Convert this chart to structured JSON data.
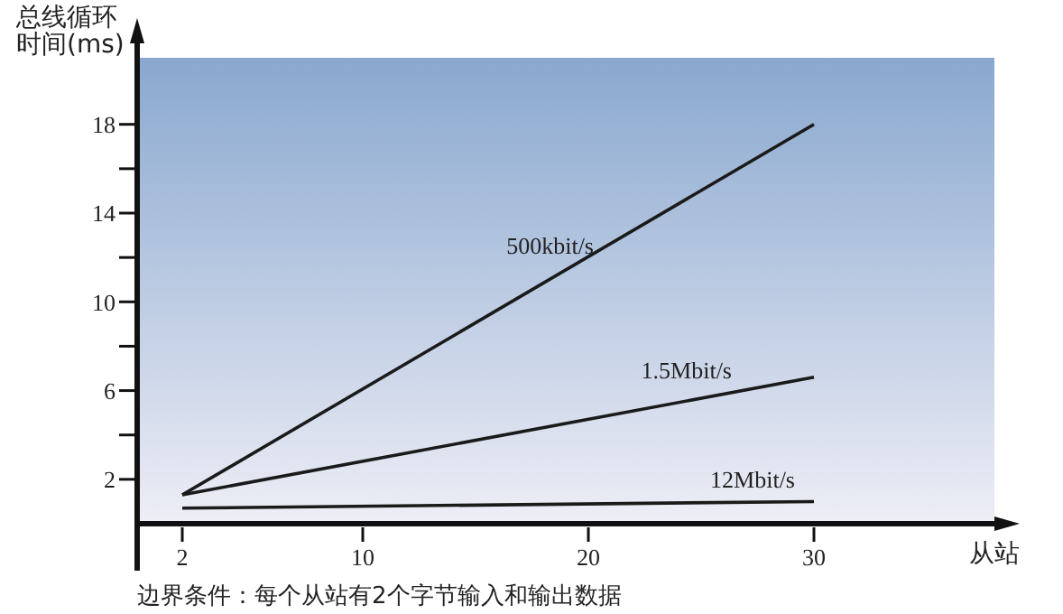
{
  "chart_data": {
    "type": "line",
    "xlabel": "从站",
    "ylabel": "总线循环时间(ms)",
    "x": [
      2,
      30
    ],
    "series": [
      {
        "name": "500kbit/s",
        "color": "#1a1a1a",
        "values": [
          1.3,
          18
        ]
      },
      {
        "name": "1.5Mbit/s",
        "color": "#1a1a1a",
        "values": [
          1.3,
          6.6
        ]
      },
      {
        "name": "12Mbit/s",
        "color": "#1a1a1a",
        "values": [
          0.7,
          1.0
        ]
      }
    ],
    "xlim": [
      0,
      38
    ],
    "xticks": [
      2,
      10,
      20,
      30
    ],
    "ylim": [
      0,
      21
    ],
    "yticks": [
      2,
      {
        "value": 4,
        "label": null
      },
      6,
      {
        "value": 8,
        "label": null
      },
      10,
      {
        "value": 12,
        "label": null
      },
      14,
      {
        "value": 16,
        "label": null
      },
      18
    ],
    "grid": false,
    "legend": false,
    "marker": "none",
    "line_style": "solid",
    "annotations": [
      "边界条件：每个从站有2个字节输入和输出数据"
    ]
  }
}
